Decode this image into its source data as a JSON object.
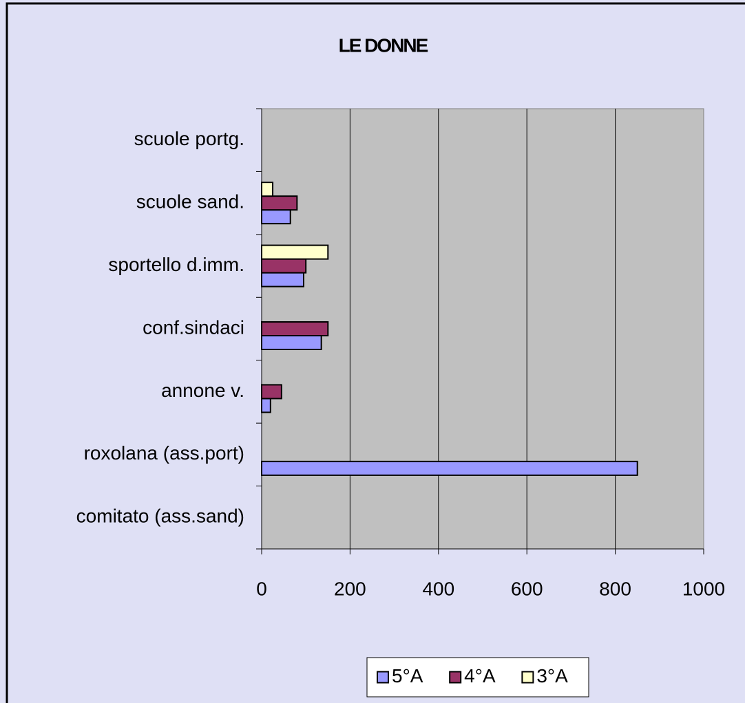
{
  "chart_data": {
    "type": "barh",
    "title": "LE DONNE",
    "categories": [
      "comitato (ass.sand)",
      "roxolana (ass.port)",
      "annone v.",
      "conf.sindaci",
      "sportello d.imm.",
      "scuole sand.",
      "scuole portg."
    ],
    "series": [
      {
        "name": "5°A",
        "color": "#9999ff",
        "values": [
          0,
          850,
          20,
          135,
          95,
          65,
          0
        ]
      },
      {
        "name": "4°A",
        "color": "#993366",
        "values": [
          0,
          0,
          45,
          150,
          100,
          80,
          0
        ]
      },
      {
        "name": "3°A",
        "color": "#ffffcc",
        "values": [
          0,
          0,
          0,
          0,
          150,
          25,
          0
        ]
      }
    ],
    "xlim": [
      0,
      1000
    ],
    "xticks": [
      0,
      200,
      400,
      600,
      800,
      1000
    ],
    "grid": true,
    "plot_color": "#c0c0c0",
    "legend": "bottom"
  }
}
